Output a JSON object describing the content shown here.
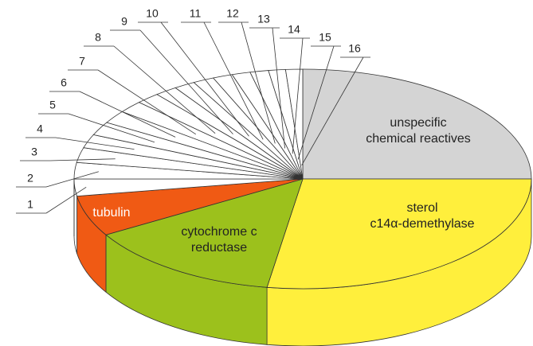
{
  "chart_data": {
    "type": "pie3d",
    "categories": [
      "unspecific chemical reactives",
      "sterol c14α-demethylase",
      "cytochrome c reductase",
      "tubulin",
      "1",
      "2",
      "3",
      "4",
      "5",
      "6",
      "7",
      "8",
      "9",
      "10",
      "11",
      "12",
      "13",
      "14",
      "15",
      "16"
    ],
    "values": [
      25,
      27.5,
      14,
      6,
      2.5,
      2.4,
      2.2,
      2,
      2,
      1.9,
      1.8,
      1.7,
      1.6,
      1.5,
      1.5,
      1.4,
      1.3,
      1.3,
      1.2,
      1.2
    ],
    "colors": [
      "#d4d4d4",
      "#ffef3c",
      "#9cc11c",
      "#f05a14",
      "#ffffff",
      "#ffffff",
      "#ffffff",
      "#ffffff",
      "#ffffff",
      "#ffffff",
      "#ffffff",
      "#ffffff",
      "#ffffff",
      "#ffffff",
      "#ffffff",
      "#ffffff",
      "#ffffff",
      "#ffffff",
      "#ffffff",
      "#ffffff"
    ]
  }
}
